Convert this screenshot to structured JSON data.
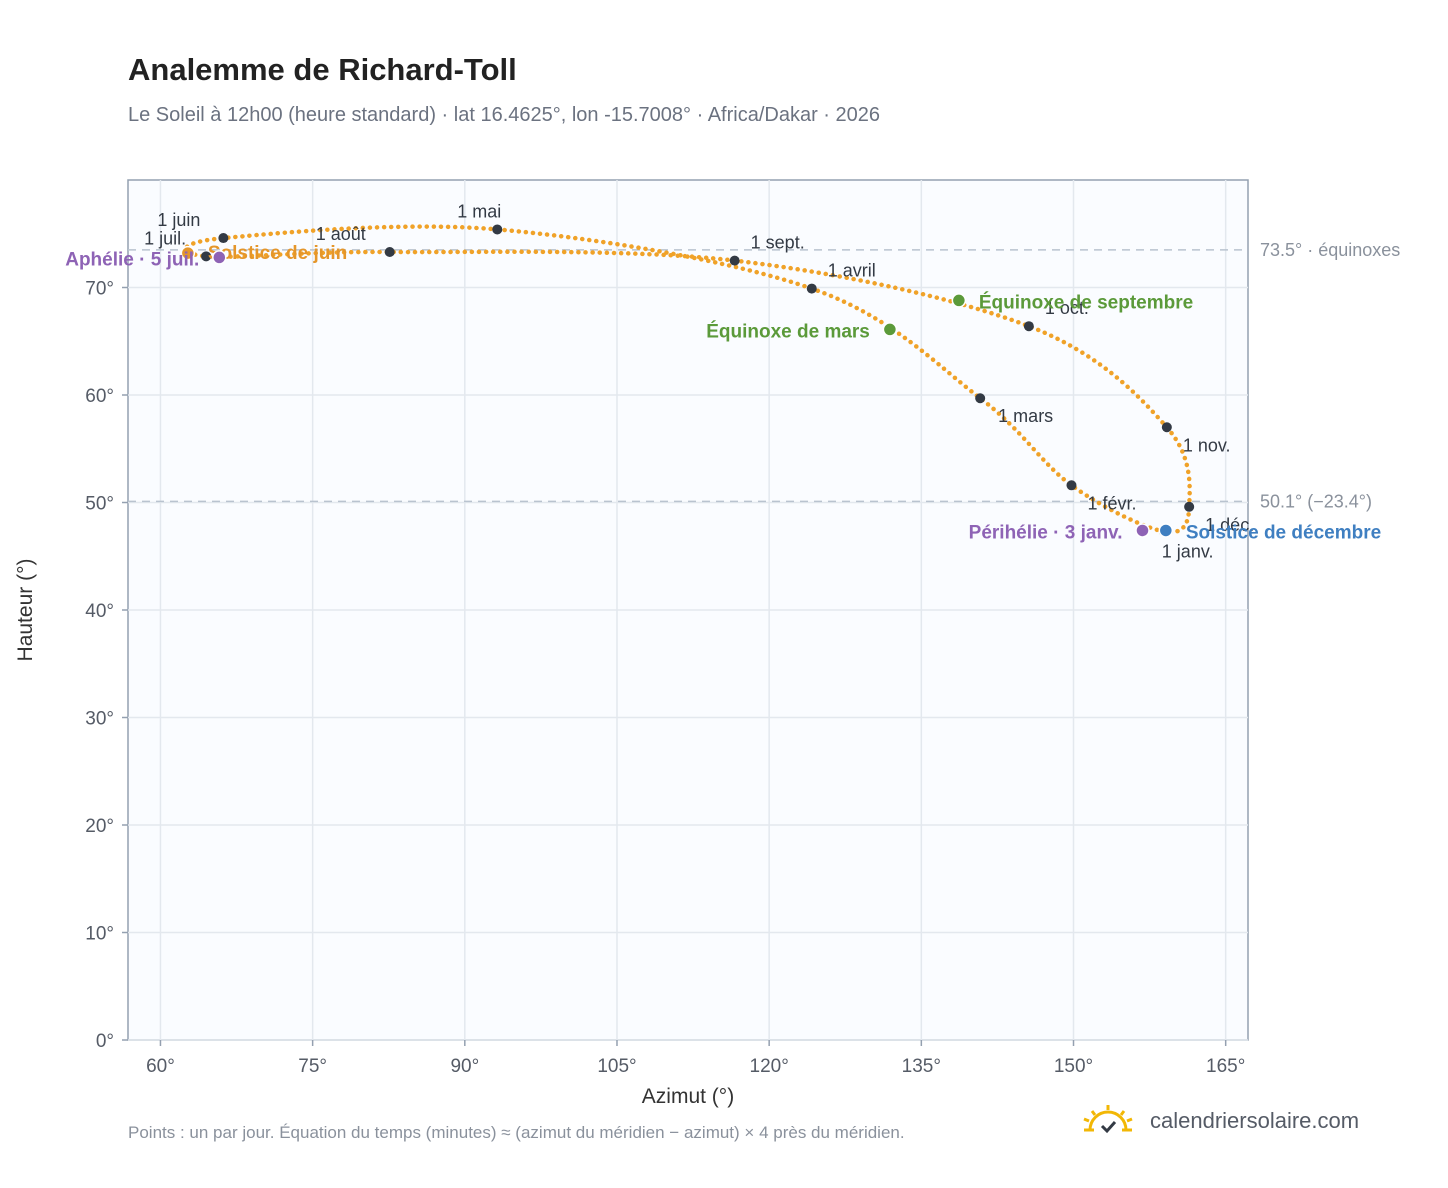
{
  "header": {
    "title": "Analemme de Richard-Toll",
    "subtitle": "Le Soleil à 12h00 (heure standard) · lat 16.4625°, lon -15.7008° · Africa/Dakar · 2026"
  },
  "footer": {
    "note": "Points : un par jour. Équation du temps (minutes) ≈ (azimut du méridien − azimut) × 4 près du méridien.",
    "brand": "calendriersolaire.com",
    "brand_icon": "sun-check-icon"
  },
  "chart_data": {
    "type": "scatter",
    "title": "Analemme de Richard-Toll",
    "xlabel": "Azimut (°)",
    "ylabel": "Hauteur (°)",
    "xlim": [
      56.8,
      167.2
    ],
    "ylim": [
      0,
      80
    ],
    "xticks": [
      60,
      75,
      90,
      105,
      120,
      135,
      150,
      165
    ],
    "yticks": [
      0,
      10,
      20,
      30,
      40,
      50,
      60,
      70
    ],
    "tick_suffix": "°",
    "grid": true,
    "colors": {
      "curve": "#f0a228",
      "month": "#333a44",
      "equinox": "#5b9a3a",
      "solstice_june": "#e5962a",
      "solstice_dec": "#3f7fc1",
      "apsis": "#8e63b5",
      "refline": "#b9c3cf"
    },
    "reference_lines": [
      {
        "y": 73.5,
        "label": "73.5° · équinoxes"
      },
      {
        "y": 50.1,
        "label": "50.1° (−23.4°)"
      }
    ],
    "month_points": [
      {
        "label": "1 janv.",
        "x": 158.9,
        "y": 47.3
      },
      {
        "label": "1 févr.",
        "x": 149.8,
        "y": 51.6
      },
      {
        "label": "1 mars",
        "x": 140.8,
        "y": 59.7
      },
      {
        "label": "1 avril",
        "x": 124.2,
        "y": 69.9
      },
      {
        "label": "1 mai",
        "x": 93.2,
        "y": 75.4
      },
      {
        "label": "1 juin",
        "x": 66.2,
        "y": 74.6
      },
      {
        "label": "1 juil.",
        "x": 64.5,
        "y": 72.9
      },
      {
        "label": "1 août",
        "x": 82.6,
        "y": 73.3
      },
      {
        "label": "1 sept.",
        "x": 116.6,
        "y": 72.5
      },
      {
        "label": "1 oct.",
        "x": 145.6,
        "y": 66.4
      },
      {
        "label": "1 nov.",
        "x": 159.2,
        "y": 57.0
      },
      {
        "label": "1 déc.",
        "x": 161.4,
        "y": 49.6
      }
    ],
    "events": [
      {
        "label": "Équinoxe de mars",
        "x": 131.9,
        "y": 66.1,
        "kind": "equinox"
      },
      {
        "label": "Équinoxe de septembre",
        "x": 138.7,
        "y": 68.8,
        "kind": "equinox"
      },
      {
        "label": "Solstice de juin",
        "x": 62.7,
        "y": 73.2,
        "kind": "solstice_june"
      },
      {
        "label": "Solstice de décembre",
        "x": 159.1,
        "y": 47.4,
        "kind": "solstice_dec"
      },
      {
        "label": "Périhélie · 3 janv.",
        "x": 156.8,
        "y": 47.4,
        "kind": "apsis"
      },
      {
        "label": "Aphélie · 5 juil.",
        "x": 65.8,
        "y": 72.8,
        "kind": "apsis"
      }
    ]
  }
}
